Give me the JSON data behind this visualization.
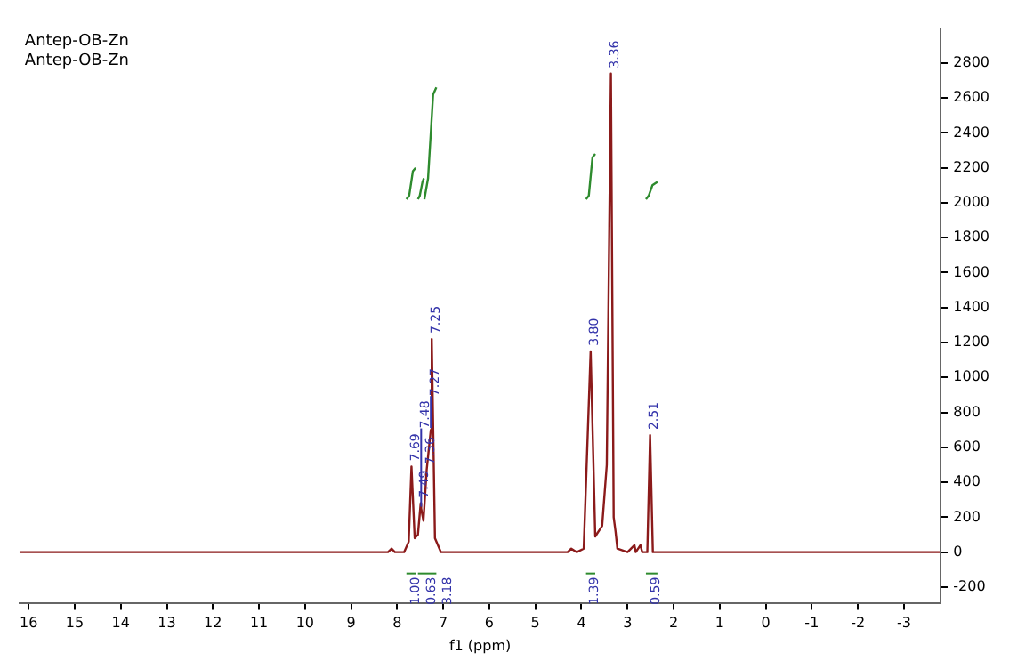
{
  "chart_data": {
    "type": "line",
    "title": "Antep-OB-Zn",
    "subtitle": "Antep-OB-Zn",
    "xlabel": "f1 (ppm)",
    "xlim": [
      16.2,
      -3.8
    ],
    "xticks": [
      16,
      15,
      14,
      13,
      12,
      11,
      10,
      9,
      8,
      7,
      6,
      5,
      4,
      3,
      2,
      1,
      0,
      -1,
      -2,
      -3
    ],
    "ylim": [
      -290,
      3000
    ],
    "yticks": [
      -200,
      0,
      200,
      400,
      600,
      800,
      1000,
      1200,
      1400,
      1600,
      1800,
      2000,
      2200,
      2400,
      2600,
      2800
    ],
    "grid": false,
    "legend": false,
    "marker": "none",
    "line_style": "solid",
    "series": [
      {
        "color": "#8b1a1a",
        "x": [
          16.2,
          8.2,
          8.12,
          8.05,
          7.85,
          7.75,
          7.69,
          7.62,
          7.55,
          7.49,
          7.48,
          7.43,
          7.36,
          7.27,
          7.25,
          7.18,
          7.05,
          6.8,
          4.3,
          4.22,
          4.1,
          3.95,
          3.8,
          3.7,
          3.55,
          3.45,
          3.36,
          3.3,
          3.26,
          3.22,
          3.0,
          2.85,
          2.82,
          2.72,
          2.68,
          2.57,
          2.51,
          2.45,
          2.3,
          -3.8
        ],
        "values": [
          0,
          0,
          20,
          0,
          0,
          60,
          490,
          80,
          100,
          280,
          250,
          180,
          470,
          700,
          1220,
          80,
          0,
          0,
          0,
          20,
          0,
          20,
          1150,
          90,
          150,
          500,
          2740,
          200,
          120,
          20,
          0,
          40,
          0,
          40,
          0,
          0,
          670,
          0,
          0,
          0
        ]
      },
      {
        "color": "#2e8b2e",
        "x": [
          7.8,
          7.74,
          7.66,
          7.6
        ],
        "values": [
          2020,
          2040,
          2180,
          2200
        ]
      },
      {
        "color": "#2e8b2e",
        "x": [
          7.55,
          7.51,
          7.45,
          7.42
        ],
        "values": [
          2020,
          2040,
          2120,
          2140
        ]
      },
      {
        "color": "#2e8b2e",
        "x": [
          7.41,
          7.33,
          7.22,
          7.15
        ],
        "values": [
          2020,
          2140,
          2620,
          2660
        ]
      },
      {
        "color": "#2e8b2e",
        "x": [
          3.9,
          3.84,
          3.76,
          3.7
        ],
        "values": [
          2020,
          2040,
          2260,
          2280
        ]
      },
      {
        "color": "#2e8b2e",
        "x": [
          2.6,
          2.54,
          2.46,
          2.35
        ],
        "values": [
          2020,
          2040,
          2100,
          2120
        ]
      }
    ],
    "annotations": [
      {
        "text": "7.69",
        "x": 7.69,
        "y": 490
      },
      {
        "text": "7.49",
        "x": 7.49,
        "y": 280
      },
      {
        "text": "7.48",
        "x": 7.48,
        "y": 250
      },
      {
        "text": "7.36",
        "x": 7.36,
        "y": 470
      },
      {
        "text": "7.27",
        "x": 7.27,
        "y": 700
      },
      {
        "text": "7.25",
        "x": 7.25,
        "y": 1220
      },
      {
        "text": "3.80",
        "x": 3.8,
        "y": 1150
      },
      {
        "text": "3.36",
        "x": 3.36,
        "y": 2740
      },
      {
        "text": "2.51",
        "x": 2.51,
        "y": 670
      },
      "1.00",
      "0.63",
      "3.18",
      "1.39",
      "0.59"
    ]
  }
}
